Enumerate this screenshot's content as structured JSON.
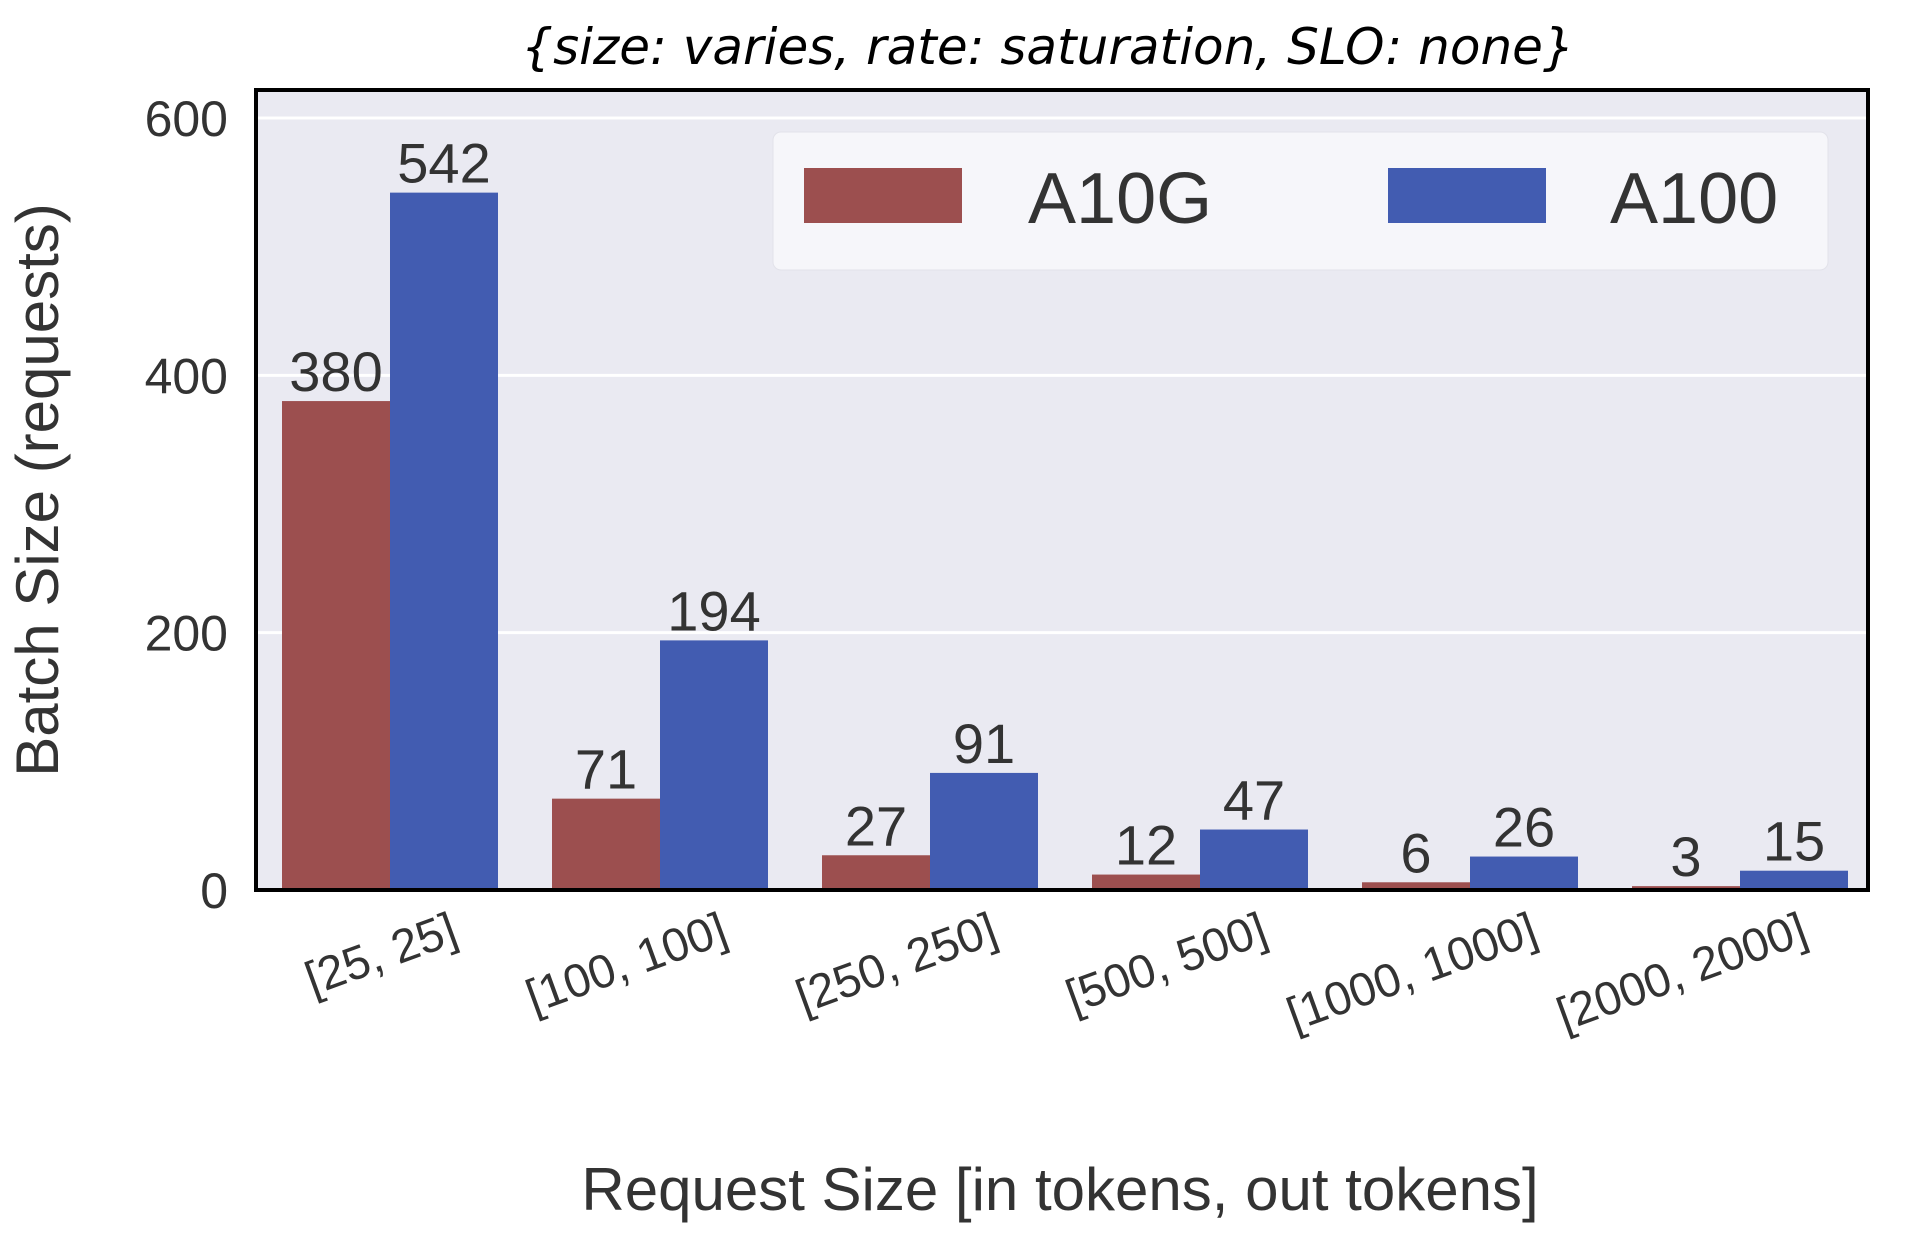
{
  "chart_data": {
    "type": "bar",
    "title": "{size: varies, rate: saturation, SLO: none}",
    "xlabel": "Request Size [in tokens, out tokens]",
    "ylabel": "Batch Size (requests)",
    "categories": [
      "[25, 25]",
      "[100, 100]",
      "[250, 250]",
      "[500, 500]",
      "[1000, 1000]",
      "[2000, 2000]"
    ],
    "series": [
      {
        "name": "A10G",
        "color": "#9c4f4f",
        "values": [
          380,
          71,
          27,
          12,
          6,
          3
        ]
      },
      {
        "name": "A100",
        "color": "#425cb1",
        "values": [
          542,
          194,
          91,
          47,
          26,
          15
        ]
      }
    ],
    "ylim": [
      0,
      600
    ],
    "yticks": [
      0,
      200,
      400,
      600
    ],
    "grid": true,
    "legend_position": "top-right",
    "background": "#eaeaf2"
  }
}
